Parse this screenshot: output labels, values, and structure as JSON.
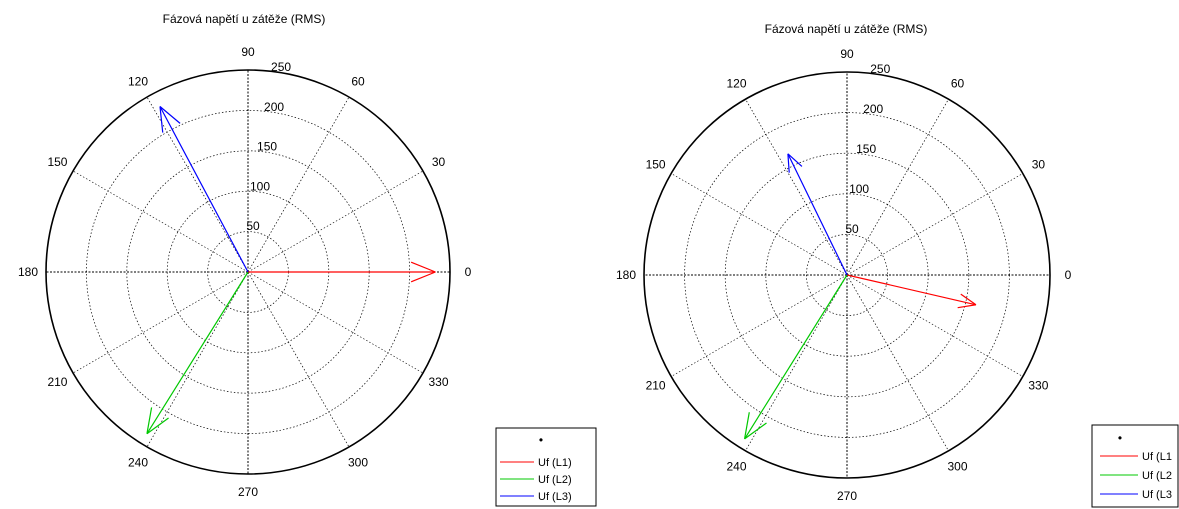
{
  "chart_data": [
    {
      "type": "polar",
      "title": "Fázová napětí u zátěže (RMS)",
      "angle_ticks": [
        "0",
        "30",
        "60",
        "90",
        "120",
        "150",
        "180",
        "210",
        "240",
        "270",
        "300",
        "330"
      ],
      "radial_ticks": [
        "50",
        "100",
        "150",
        "200",
        "250"
      ],
      "rmax": 250,
      "grid": true,
      "legend": {
        "placement": "bottom-right",
        "marker": "•"
      },
      "series": [
        {
          "name": "Uf (L1)",
          "color": "#ff0000",
          "angle": 0,
          "magnitude": 232
        },
        {
          "name": "Uf (L2)",
          "color": "#00c800",
          "angle": 238,
          "magnitude": 236
        },
        {
          "name": "Uf (L3)",
          "color": "#0000ff",
          "angle": 118,
          "magnitude": 232
        }
      ]
    },
    {
      "type": "polar",
      "title": "Fázová napětí u zátěže (RMS)",
      "angle_ticks": [
        "0",
        "30",
        "60",
        "90",
        "120",
        "150",
        "180",
        "210",
        "240",
        "270",
        "300",
        "330"
      ],
      "radial_ticks": [
        "50",
        "100",
        "150",
        "200",
        "250"
      ],
      "rmax": 250,
      "grid": true,
      "legend": {
        "placement": "bottom-right",
        "marker": "•"
      },
      "series": [
        {
          "name": "Uf (L1",
          "color": "#ff0000",
          "angle": -13,
          "magnitude": 163
        },
        {
          "name": "Uf (L2",
          "color": "#00c800",
          "angle": 238,
          "magnitude": 238
        },
        {
          "name": "Uf (L3",
          "color": "#0000ff",
          "angle": 116,
          "magnitude": 166
        }
      ]
    }
  ]
}
